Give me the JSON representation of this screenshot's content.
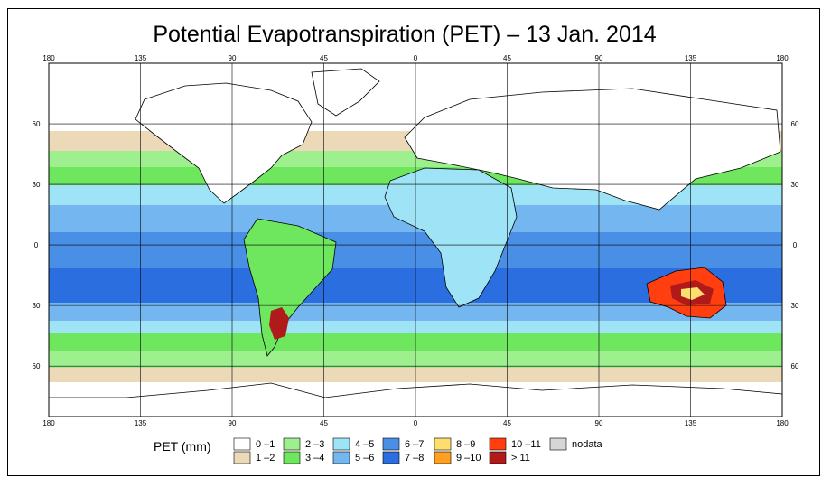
{
  "title": "Potential Evapotranspiration (PET) – 13 Jan. 2014",
  "map": {
    "lon_ticks": [
      "180",
      "135",
      "90",
      "45",
      "0",
      "45",
      "90",
      "135",
      "180"
    ],
    "lat_ticks": [
      "60",
      "30",
      "0",
      "30",
      "60"
    ],
    "lon_range": [
      -180,
      180
    ],
    "lat_range": [
      -85,
      90
    ],
    "grid": true
  },
  "legend": {
    "title": "PET (mm)",
    "items": [
      {
        "label": "0 –1",
        "color": "#ffffff"
      },
      {
        "label": "1 –2",
        "color": "#ecd9b8"
      },
      {
        "label": "2 –3",
        "color": "#9ef08f"
      },
      {
        "label": "3 –4",
        "color": "#6ee65e"
      },
      {
        "label": "4 –5",
        "color": "#9fe4f6"
      },
      {
        "label": "5 –6",
        "color": "#74b7f0"
      },
      {
        "label": "6 –7",
        "color": "#4a8fe6"
      },
      {
        "label": "7 –8",
        "color": "#2a6ee0"
      },
      {
        "label": "8 –9",
        "color": "#ffde70"
      },
      {
        "label": "9 –10",
        "color": "#ffa020"
      },
      {
        "label": "10 –11",
        "color": "#ff3f10"
      },
      {
        "label": "> 11",
        "color": "#b01a1a"
      },
      {
        "label": "nodata",
        "color": "#d6d6d6"
      }
    ]
  }
}
